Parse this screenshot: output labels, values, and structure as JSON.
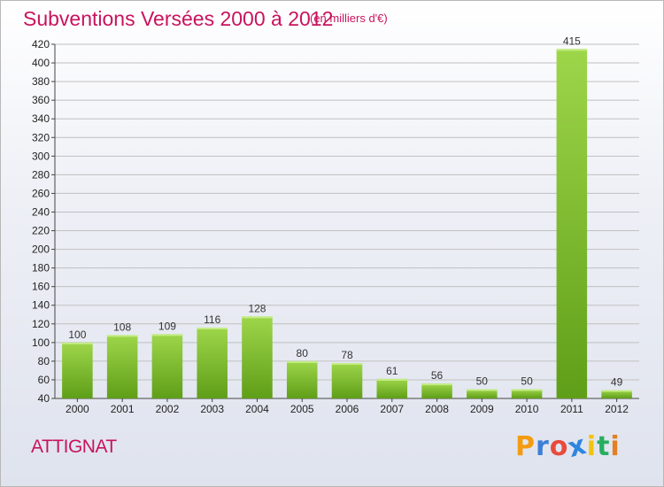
{
  "header": {
    "title": "Subventions Versées 2000 à 2012",
    "unit": "(en milliers d'€)"
  },
  "footer": {
    "commune": "ATTIGNAT",
    "logo_letters": [
      "P",
      "r",
      "o",
      "x",
      "i",
      "t",
      "i"
    ],
    "logo_colors": [
      "#f39c12",
      "#3d7fd6",
      "#e74c3c",
      "#2e86de",
      "#f1c40f",
      "#27ae60",
      "#e67e22"
    ]
  },
  "colors": {
    "title": "#c8135e",
    "bar_light": "#9ed64a",
    "bar_dark": "#5f9e18",
    "grid": "#c0c0c0"
  },
  "chart_data": {
    "type": "bar",
    "title": "Subventions Versées 2000 à 2012",
    "subtitle": "(en milliers d'€)",
    "categories": [
      "2000",
      "2001",
      "2002",
      "2003",
      "2004",
      "2005",
      "2006",
      "2007",
      "2008",
      "2009",
      "2010",
      "2011",
      "2012"
    ],
    "values": [
      100,
      108,
      109,
      116,
      128,
      80,
      78,
      61,
      56,
      50,
      50,
      415,
      49
    ],
    "ylim": [
      40,
      420
    ],
    "yticks": [
      40,
      60,
      80,
      100,
      120,
      140,
      160,
      180,
      200,
      220,
      240,
      260,
      280,
      300,
      320,
      340,
      360,
      380,
      400,
      420
    ],
    "xlabel": "",
    "ylabel": "",
    "grid": true
  }
}
